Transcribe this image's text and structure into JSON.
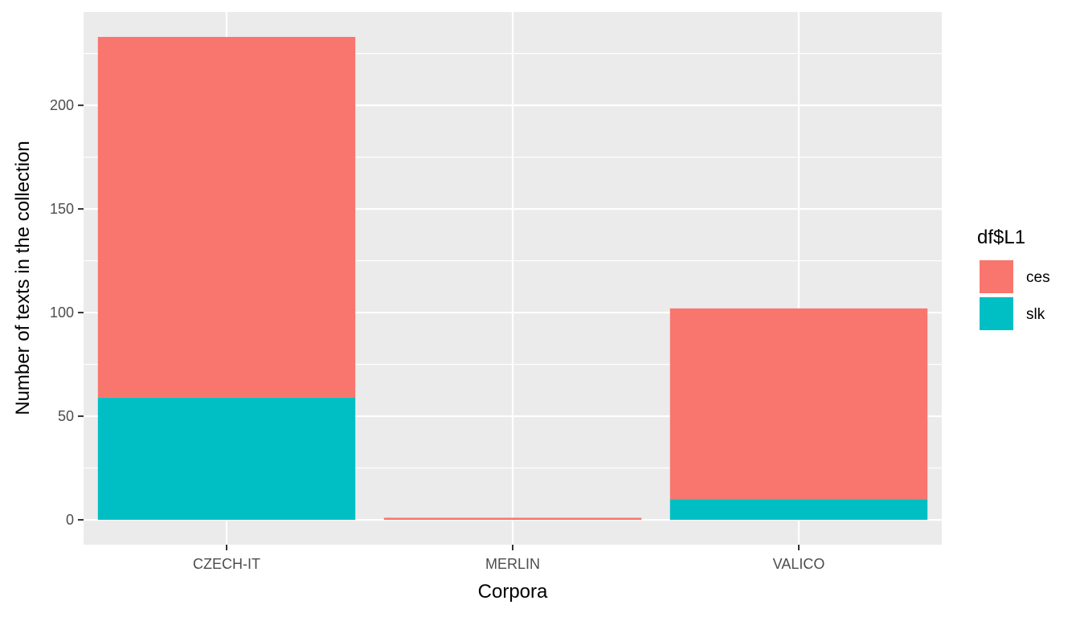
{
  "chart_data": {
    "type": "bar",
    "stacked": true,
    "title": "",
    "xlabel": "Corpora",
    "ylabel": "Number of texts in the collection",
    "categories": [
      "CZECH-IT",
      "MERLIN",
      "VALICO"
    ],
    "series": [
      {
        "name": "slk",
        "values": [
          59,
          0,
          10
        ],
        "color": "#00BFC4"
      },
      {
        "name": "ces",
        "values": [
          174,
          1,
          92
        ],
        "color": "#F8766D"
      }
    ],
    "ylim": [
      -12,
      245
    ],
    "yticks": [
      0,
      50,
      100,
      150,
      200
    ],
    "grid": true,
    "legend": {
      "title": "df$L1",
      "position": "right",
      "entries": [
        {
          "label": "ces",
          "color": "#F8766D"
        },
        {
          "label": "slk",
          "color": "#00BFC4"
        }
      ]
    },
    "panel_background": "#EBEBEB",
    "grid_color": "#FFFFFF"
  }
}
